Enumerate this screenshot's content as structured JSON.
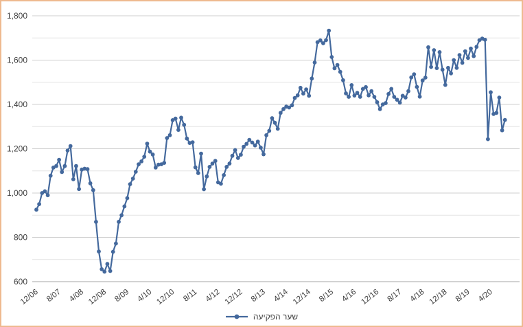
{
  "window": {
    "background_color": "#ffffff",
    "border_color": "#eeb98f"
  },
  "chart_data": {
    "type": "line",
    "title": "",
    "xlabel": "",
    "ylabel": "",
    "grid": "on",
    "legend_position": "bottom-center",
    "series_name": "שער הפקיעה",
    "line_color": "#44699d",
    "marker": "circle",
    "text_color": "#3f3f3f",
    "grid_major_color": "#cfcfcf",
    "grid_minor_color": "#e4e4e4",
    "axis_line_color": "#a6a6a6",
    "ylim": [
      600,
      1800
    ],
    "y_major_ticks": [
      600,
      800,
      1000,
      1200,
      1400,
      1600,
      1800
    ],
    "y_major_tick_labels": [
      "600",
      "800",
      "1,000",
      "1,200",
      "1,400",
      "1,600",
      "1,800"
    ],
    "y_minor_step": 100,
    "x_tick_labels": [
      "12/06",
      "8/07",
      "4/08",
      "12/08",
      "8/09",
      "4/10",
      "12/10",
      "8/11",
      "4/12",
      "12/12",
      "8/13",
      "4/14",
      "12/14",
      "8/15",
      "4/16",
      "12/16",
      "8/17",
      "4/18",
      "12/18",
      "8/19",
      "4/20"
    ],
    "x_tick_every_n_points": 8,
    "points_start": "12/2006",
    "points_frequency": "monthly",
    "values": [
      925,
      950,
      1000,
      1008,
      990,
      1078,
      1115,
      1122,
      1150,
      1095,
      1122,
      1192,
      1212,
      1062,
      1122,
      1018,
      1106,
      1110,
      1108,
      1044,
      1013,
      870,
      736,
      656,
      645,
      680,
      648,
      735,
      772,
      870,
      900,
      940,
      977,
      1040,
      1065,
      1096,
      1130,
      1143,
      1164,
      1223,
      1187,
      1174,
      1115,
      1128,
      1130,
      1136,
      1248,
      1261,
      1329,
      1336,
      1285,
      1340,
      1308,
      1246,
      1226,
      1229,
      1116,
      1090,
      1178,
      1017,
      1075,
      1118,
      1133,
      1145,
      1048,
      1042,
      1081,
      1118,
      1133,
      1168,
      1194,
      1158,
      1173,
      1209,
      1222,
      1240,
      1228,
      1215,
      1232,
      1205,
      1175,
      1261,
      1281,
      1338,
      1317,
      1290,
      1362,
      1379,
      1390,
      1386,
      1396,
      1429,
      1441,
      1475,
      1449,
      1468,
      1439,
      1517,
      1589,
      1681,
      1689,
      1676,
      1690,
      1733,
      1614,
      1563,
      1578,
      1547,
      1509,
      1450,
      1434,
      1487,
      1440,
      1452,
      1434,
      1470,
      1478,
      1441,
      1460,
      1434,
      1410,
      1379,
      1400,
      1406,
      1447,
      1470,
      1434,
      1421,
      1408,
      1439,
      1431,
      1460,
      1522,
      1536,
      1479,
      1435,
      1508,
      1521,
      1658,
      1569,
      1645,
      1564,
      1636,
      1557,
      1488,
      1565,
      1540,
      1600,
      1565,
      1623,
      1588,
      1640,
      1610,
      1652,
      1618,
      1660,
      1690,
      1697,
      1692,
      1243,
      1455,
      1357,
      1362,
      1431,
      1283,
      1330
    ]
  }
}
